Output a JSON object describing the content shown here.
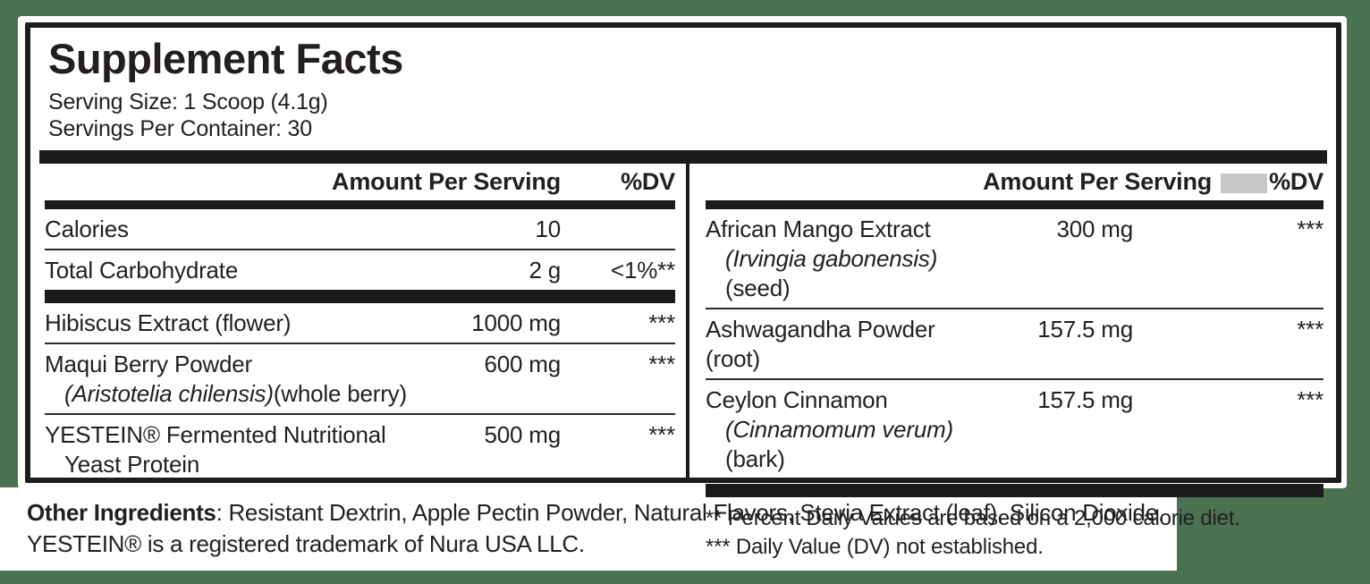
{
  "colors": {
    "background": "#4a7150",
    "text": "#231f20",
    "bar": "#1b1b1b",
    "gray_box": "#c8c8c8",
    "panel": "#ffffff"
  },
  "panel": {
    "title": "Supplement Facts",
    "serving_size": "Serving Size: 1 Scoop (4.1g)",
    "servings_per_container": "Servings Per Container: 30"
  },
  "left_column": {
    "header": {
      "amount_label": "Amount Per Serving",
      "dv_label": "%DV"
    },
    "rows": [
      {
        "name": "Calories",
        "sub": [],
        "amount": "10",
        "dv": "",
        "after": "thin"
      },
      {
        "name": "Total Carbohydrate",
        "sub": [],
        "amount": "2 g",
        "dv": "<1%**",
        "after": "thick"
      },
      {
        "name": "Hibiscus Extract (flower)",
        "sub": [],
        "amount": "1000 mg",
        "dv": "***",
        "after": "thin"
      },
      {
        "name": "Maqui Berry Powder",
        "sub": [
          {
            "text": "(Aristotelia chilensis)",
            "italic": true
          },
          {
            "text": "(whole berry)",
            "italic": false
          }
        ],
        "amount": "600 mg",
        "dv": "***",
        "after": "thin"
      },
      {
        "name": "YESTEIN® Fermented Nutritional",
        "sub": [
          {
            "text": "Yeast Protein",
            "italic": false
          }
        ],
        "amount": "500 mg",
        "dv": "***",
        "after": "none"
      }
    ]
  },
  "right_column": {
    "header": {
      "amount_label": "Amount Per Serving",
      "dv_label": "%DV"
    },
    "rows": [
      {
        "name": "African Mango Extract",
        "sub": [
          {
            "text": "(Irvingia gabonensis)",
            "italic": true
          },
          {
            "text": "(seed)",
            "italic": false
          }
        ],
        "amount": "300 mg",
        "dv": "***",
        "after": "thin"
      },
      {
        "name": "Ashwagandha Powder (root)",
        "sub": [],
        "amount": "157.5 mg",
        "dv": "***",
        "after": "thin"
      },
      {
        "name": "Ceylon Cinnamon",
        "sub": [
          {
            "text": "(Cinnamomum verum)",
            "italic": true
          },
          {
            "text": "(bark)",
            "italic": false
          }
        ],
        "amount": "157.5 mg",
        "dv": "***",
        "after": "bar"
      }
    ],
    "footnotes": [
      "** Percent Daily Values are based on a 2,000 calorie diet.",
      "*** Daily Value (DV) not established."
    ]
  },
  "footer": {
    "other_ingredients_label": "Other Ingredients",
    "other_ingredients_text": ": Resistant Dextrin, Apple Pectin Powder, Natural Flavors, Stevia Extract (leaf), Silicon Dioxide.",
    "trademark_line": "YESTEIN® is a registered trademark of Nura USA LLC."
  }
}
